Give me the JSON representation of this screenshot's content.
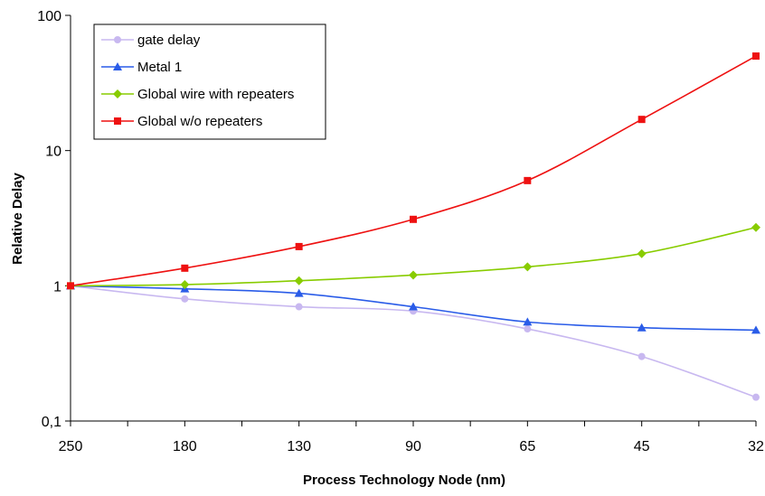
{
  "chart_data": {
    "type": "line",
    "title": "",
    "xlabel": "Process Technology Node (nm)",
    "ylabel": "Relative Delay",
    "x_categories": [
      "250",
      "180",
      "130",
      "90",
      "65",
      "45",
      "32"
    ],
    "y_scale": "log",
    "ylim": [
      0.1,
      100
    ],
    "y_ticks": [
      0.1,
      1,
      10,
      100
    ],
    "y_tick_labels": [
      "0,1",
      "1",
      "10",
      "100"
    ],
    "grid": false,
    "legend_position": "top-left",
    "series": [
      {
        "name": "gate delay",
        "color": "#c8b8f0",
        "marker": "circle",
        "values": [
          1,
          0.8,
          0.7,
          0.65,
          0.48,
          0.3,
          0.15
        ]
      },
      {
        "name": "Metal 1",
        "color": "#2a5ce8",
        "marker": "triangle",
        "values": [
          1,
          0.95,
          0.88,
          0.7,
          0.54,
          0.49,
          0.47
        ]
      },
      {
        "name": "Global wire with repeaters",
        "color": "#88cc00",
        "marker": "diamond",
        "values": [
          1,
          1.02,
          1.09,
          1.2,
          1.38,
          1.73,
          2.7
        ]
      },
      {
        "name": "Global w/o repeaters",
        "color": "#ee1111",
        "marker": "square",
        "values": [
          1,
          1.35,
          1.95,
          3.1,
          6,
          17,
          50
        ]
      }
    ]
  }
}
